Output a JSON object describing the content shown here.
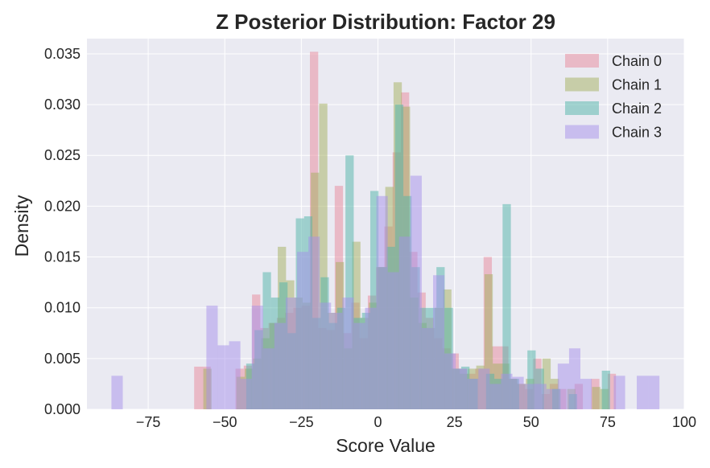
{
  "chart_data": {
    "type": "bar",
    "title": "Z Posterior Distribution: Factor 29",
    "xlabel": "Score Value",
    "ylabel": "Density",
    "xlim": [
      -95,
      100
    ],
    "ylim": [
      0,
      0.0365
    ],
    "xticks": [
      -75,
      -50,
      -25,
      0,
      25,
      50,
      75,
      100
    ],
    "xtick_labels": [
      "−75",
      "−50",
      "−25",
      "0",
      "25",
      "50",
      "75",
      "100"
    ],
    "yticks": [
      0.0,
      0.005,
      0.01,
      0.015,
      0.02,
      0.025,
      0.03,
      0.035
    ],
    "ytick_labels": [
      "0.000",
      "0.005",
      "0.010",
      "0.015",
      "0.020",
      "0.025",
      "0.030",
      "0.035"
    ],
    "grid": true,
    "legend_position": "top-right",
    "bar_alpha": 0.5,
    "series": [
      {
        "name": "Chain 0",
        "color": "#e8889a",
        "bins": [
          [
            -60.0,
            -57.3,
            0.0042
          ],
          [
            -57.3,
            -54.6,
            0.0042
          ],
          [
            -46.5,
            -43.8,
            0.004
          ],
          [
            -43.8,
            -41.1,
            0.0043
          ],
          [
            -41.1,
            -38.4,
            0.0113
          ],
          [
            -38.4,
            -35.7,
            0.008
          ],
          [
            -35.7,
            -33.0,
            0.0085
          ],
          [
            -33.0,
            -30.3,
            0.009
          ],
          [
            -30.3,
            -27.6,
            0.0095
          ],
          [
            -27.6,
            -24.9,
            0.01
          ],
          [
            -24.9,
            -22.2,
            0.0102
          ],
          [
            -22.2,
            -19.5,
            0.0352
          ],
          [
            -19.5,
            -16.8,
            0.008
          ],
          [
            -16.8,
            -14.1,
            0.0078
          ],
          [
            -14.1,
            -11.4,
            0.022
          ],
          [
            -11.4,
            -8.7,
            0.0075
          ],
          [
            -8.7,
            -6.0,
            0.0105
          ],
          [
            -6.0,
            -3.3,
            0.007
          ],
          [
            -3.3,
            -0.6,
            0.0112
          ],
          [
            -0.6,
            2.1,
            0.014
          ],
          [
            2.1,
            4.8,
            0.018
          ],
          [
            4.8,
            7.5,
            0.0253
          ],
          [
            7.5,
            10.2,
            0.0312
          ],
          [
            10.2,
            12.9,
            0.0155
          ],
          [
            12.9,
            15.6,
            0.0115
          ],
          [
            15.6,
            18.3,
            0.009
          ],
          [
            18.3,
            21.0,
            0.007
          ],
          [
            21.0,
            23.7,
            0.006
          ],
          [
            23.7,
            26.4,
            0.0055
          ],
          [
            26.4,
            29.1,
            0.004
          ],
          [
            29.1,
            31.8,
            0.0035
          ],
          [
            31.8,
            34.5,
            0.004
          ],
          [
            34.5,
            37.2,
            0.015
          ],
          [
            37.2,
            39.9,
            0.0062
          ],
          [
            39.9,
            42.6,
            0.0062
          ],
          [
            42.6,
            45.3,
            0.003
          ],
          [
            45.3,
            48.0,
            0.0025
          ],
          [
            48.0,
            50.7,
            0.002
          ],
          [
            50.7,
            53.4,
            0.005
          ],
          [
            53.4,
            56.1,
            0.0015
          ],
          [
            56.1,
            58.8,
            0.0025
          ],
          [
            58.8,
            61.5,
            0.002
          ],
          [
            64.2,
            66.9,
            0.0025
          ],
          [
            69.6,
            72.3,
            0.003
          ],
          [
            75.0,
            77.7,
            0.0035
          ]
        ]
      },
      {
        "name": "Chain 1",
        "color": "#a3b05e",
        "bins": [
          [
            -57.0,
            -54.3,
            0.004
          ],
          [
            -46.2,
            -43.5,
            0.0032
          ],
          [
            -43.5,
            -40.8,
            0.004
          ],
          [
            -40.8,
            -38.1,
            0.005
          ],
          [
            -38.1,
            -35.4,
            0.007
          ],
          [
            -35.4,
            -32.7,
            0.0085
          ],
          [
            -32.7,
            -30.0,
            0.016
          ],
          [
            -30.0,
            -27.3,
            0.0127
          ],
          [
            -27.3,
            -24.6,
            0.011
          ],
          [
            -24.6,
            -21.9,
            0.0105
          ],
          [
            -21.9,
            -19.2,
            0.0233
          ],
          [
            -19.2,
            -16.5,
            0.0301
          ],
          [
            -16.5,
            -13.8,
            0.0095
          ],
          [
            -13.8,
            -11.1,
            0.0145
          ],
          [
            -11.1,
            -8.4,
            0.006
          ],
          [
            -8.4,
            -5.7,
            0.0165
          ],
          [
            -5.7,
            -3.0,
            0.009
          ],
          [
            -3.0,
            -0.3,
            0.0105
          ],
          [
            -0.3,
            2.4,
            0.014
          ],
          [
            2.4,
            5.1,
            0.0219
          ],
          [
            5.1,
            7.8,
            0.0322
          ],
          [
            7.8,
            10.5,
            0.0298
          ],
          [
            10.5,
            13.2,
            0.011
          ],
          [
            13.2,
            15.9,
            0.0085
          ],
          [
            15.9,
            18.6,
            0.008
          ],
          [
            18.6,
            21.3,
            0.01
          ],
          [
            21.3,
            24.0,
            0.0118
          ],
          [
            24.0,
            26.7,
            0.004
          ],
          [
            26.7,
            29.4,
            0.0035
          ],
          [
            29.4,
            32.1,
            0.004
          ],
          [
            32.1,
            34.8,
            0.0043
          ],
          [
            34.8,
            37.5,
            0.0133
          ],
          [
            37.5,
            40.2,
            0.0045
          ],
          [
            40.2,
            42.9,
            0.0045
          ],
          [
            42.9,
            45.6,
            0.003
          ],
          [
            45.6,
            48.3,
            0.0025
          ],
          [
            48.3,
            51.0,
            0.003
          ],
          [
            53.7,
            56.4,
            0.005
          ],
          [
            56.4,
            59.1,
            0.003
          ],
          [
            61.8,
            64.5,
            0.002
          ],
          [
            69.9,
            72.6,
            0.0022
          ],
          [
            72.6,
            75.3,
            0.002
          ]
        ]
      },
      {
        "name": "Chain 2",
        "color": "#4fb4a8",
        "bins": [
          [
            -43.0,
            -40.3,
            0.0045
          ],
          [
            -40.3,
            -37.6,
            0.0078
          ],
          [
            -37.6,
            -34.9,
            0.0135
          ],
          [
            -34.9,
            -32.2,
            0.011
          ],
          [
            -32.2,
            -29.5,
            0.0125
          ],
          [
            -29.5,
            -26.8,
            0.0075
          ],
          [
            -26.8,
            -24.1,
            0.0188
          ],
          [
            -24.1,
            -21.4,
            0.019
          ],
          [
            -21.4,
            -18.7,
            0.009
          ],
          [
            -18.7,
            -16.0,
            0.013
          ],
          [
            -16.0,
            -13.3,
            0.0085
          ],
          [
            -13.3,
            -10.6,
            0.01
          ],
          [
            -10.6,
            -7.9,
            0.025
          ],
          [
            -7.9,
            -5.2,
            0.009
          ],
          [
            -5.2,
            -2.5,
            0.0095
          ],
          [
            -2.5,
            0.2,
            0.0215
          ],
          [
            0.2,
            2.9,
            0.014
          ],
          [
            2.9,
            5.6,
            0.016
          ],
          [
            5.6,
            8.3,
            0.03
          ],
          [
            8.3,
            11.0,
            0.021
          ],
          [
            11.0,
            13.7,
            0.014
          ],
          [
            13.7,
            16.4,
            0.01
          ],
          [
            16.4,
            19.1,
            0.01
          ],
          [
            19.1,
            21.8,
            0.014
          ],
          [
            21.8,
            24.5,
            0.01
          ],
          [
            24.5,
            27.2,
            0.004
          ],
          [
            27.2,
            29.9,
            0.0042
          ],
          [
            29.9,
            32.6,
            0.003
          ],
          [
            35.3,
            38.0,
            0.0035
          ],
          [
            38.0,
            40.7,
            0.003
          ],
          [
            40.7,
            43.4,
            0.0202
          ],
          [
            43.4,
            46.1,
            0.003
          ],
          [
            48.8,
            51.5,
            0.0058
          ],
          [
            51.5,
            54.2,
            0.004
          ],
          [
            56.9,
            59.6,
            0.002
          ],
          [
            62.3,
            65.0,
            0.0015
          ],
          [
            73.1,
            75.8,
            0.0038
          ]
        ]
      },
      {
        "name": "Chain 3",
        "color": "#a58fea",
        "bins": [
          [
            -87.0,
            -83.3,
            0.0033
          ],
          [
            -56.0,
            -52.3,
            0.0102
          ],
          [
            -52.3,
            -48.6,
            0.0063
          ],
          [
            -48.6,
            -44.9,
            0.0067
          ],
          [
            -44.9,
            -41.2,
            0.003
          ],
          [
            -41.2,
            -37.5,
            0.0102
          ],
          [
            -37.5,
            -33.8,
            0.006
          ],
          [
            -33.8,
            -30.1,
            0.0085
          ],
          [
            -30.1,
            -26.4,
            0.011
          ],
          [
            -26.4,
            -22.7,
            0.0155
          ],
          [
            -22.7,
            -19.0,
            0.017
          ],
          [
            -19.0,
            -15.3,
            0.0105
          ],
          [
            -15.3,
            -11.6,
            0.0095
          ],
          [
            -11.6,
            -7.9,
            0.011
          ],
          [
            -7.9,
            -4.2,
            0.0085
          ],
          [
            -4.2,
            -0.5,
            0.01
          ],
          [
            -0.5,
            3.2,
            0.021
          ],
          [
            3.2,
            6.9,
            0.0135
          ],
          [
            6.9,
            10.6,
            0.017
          ],
          [
            10.6,
            14.3,
            0.023
          ],
          [
            14.3,
            18.0,
            0.008
          ],
          [
            18.0,
            21.7,
            0.0132
          ],
          [
            21.7,
            25.4,
            0.0055
          ],
          [
            25.4,
            29.1,
            0.004
          ],
          [
            29.1,
            32.8,
            0.003
          ],
          [
            32.8,
            36.5,
            0.004
          ],
          [
            36.5,
            40.2,
            0.0025
          ],
          [
            40.2,
            43.9,
            0.0035
          ],
          [
            43.9,
            47.6,
            0.0032
          ],
          [
            47.6,
            51.3,
            0.0025
          ],
          [
            51.3,
            55.0,
            0.0025
          ],
          [
            55.0,
            58.7,
            0.002
          ],
          [
            58.7,
            62.4,
            0.0045
          ],
          [
            62.4,
            66.1,
            0.006
          ],
          [
            66.1,
            69.8,
            0.003
          ],
          [
            77.0,
            80.7,
            0.0033
          ],
          [
            84.5,
            88.2,
            0.0033
          ],
          [
            88.2,
            91.9,
            0.0033
          ]
        ]
      }
    ]
  }
}
